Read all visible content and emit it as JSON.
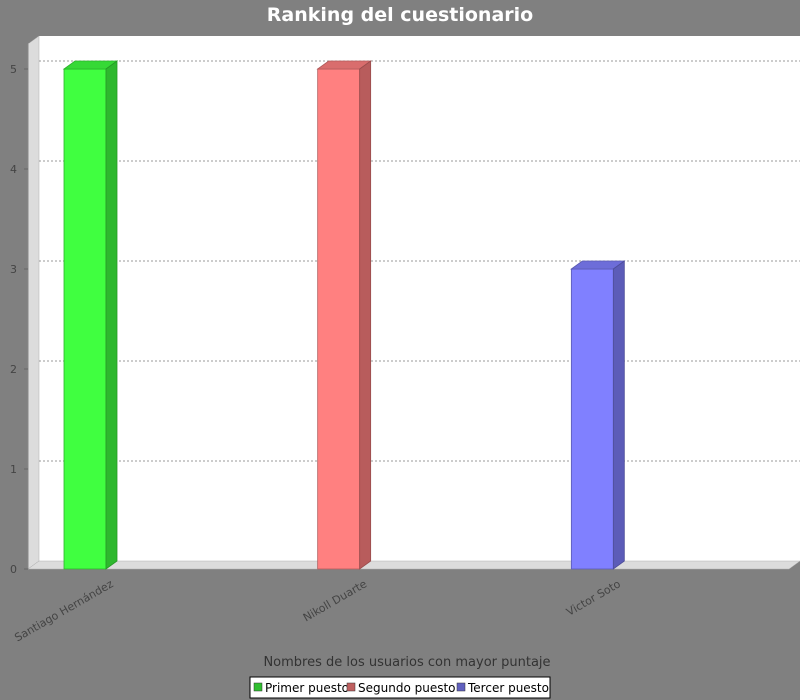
{
  "chart_data": {
    "type": "bar",
    "title": "Ranking del cuestionario",
    "xlabel": "Nombres de los usuarios con mayor puntaje",
    "ylabel": "",
    "categories": [
      "Santiago Hernández",
      "Nikoll Duarte",
      "Victor Soto"
    ],
    "series": [
      {
        "name": "Primer puesto",
        "values": [
          5,
          null,
          null
        ],
        "color": "#40ff40"
      },
      {
        "name": "Segundo puesto",
        "values": [
          null,
          5,
          null
        ],
        "color": "#ff8080"
      },
      {
        "name": "Tercer puesto",
        "values": [
          null,
          null,
          3
        ],
        "color": "#8080ff"
      }
    ],
    "ylim": [
      0,
      5.25
    ],
    "yticks": [
      "0",
      "1",
      "2",
      "3",
      "4",
      "5"
    ],
    "grid": true,
    "legend_position": "bottom"
  }
}
